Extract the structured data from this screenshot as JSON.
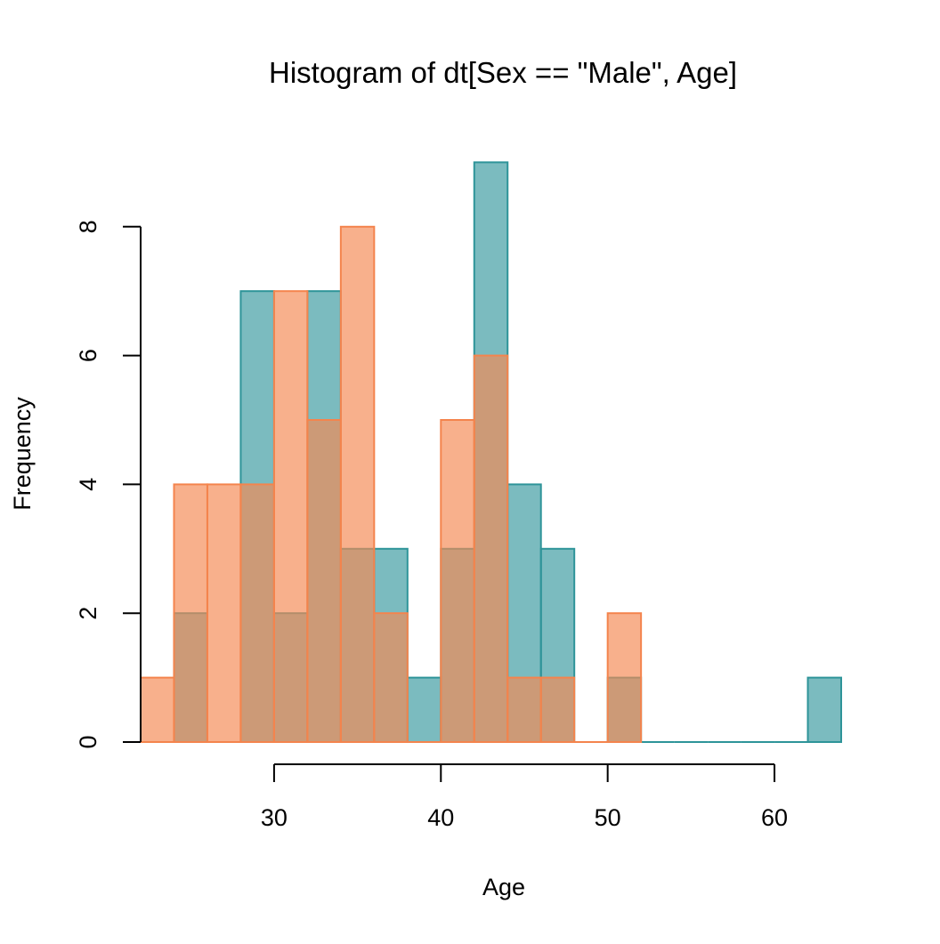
{
  "chart_data": {
    "type": "bar",
    "title": "Histogram of dt[Sex == \"Male\", Age]",
    "xlabel": "Age",
    "ylabel": "Frequency",
    "bin_width": 2,
    "x_bin_starts": [
      22,
      24,
      26,
      28,
      30,
      32,
      34,
      36,
      38,
      40,
      42,
      44,
      46,
      48,
      50,
      52,
      54,
      56,
      58,
      60,
      62
    ],
    "xlim": [
      22,
      64
    ],
    "ylim": [
      0,
      9
    ],
    "x_ticks": [
      30,
      40,
      50,
      60
    ],
    "y_ticks": [
      0,
      2,
      4,
      6,
      8
    ],
    "series": [
      {
        "values": [
          0,
          2,
          0,
          7,
          2,
          7,
          3,
          3,
          1,
          3,
          9,
          4,
          3,
          0,
          1,
          0,
          0,
          0,
          0,
          0,
          1
        ],
        "color": "#2E9499",
        "fill": "rgba(46,148,153,0.63)"
      },
      {
        "values": [
          1,
          4,
          4,
          4,
          7,
          5,
          8,
          2,
          0,
          5,
          6,
          1,
          1,
          0,
          2
        ],
        "color": "#F4844D",
        "fill": "rgba(245,137,83,0.67)"
      }
    ],
    "grid": false,
    "legend": "none"
  }
}
